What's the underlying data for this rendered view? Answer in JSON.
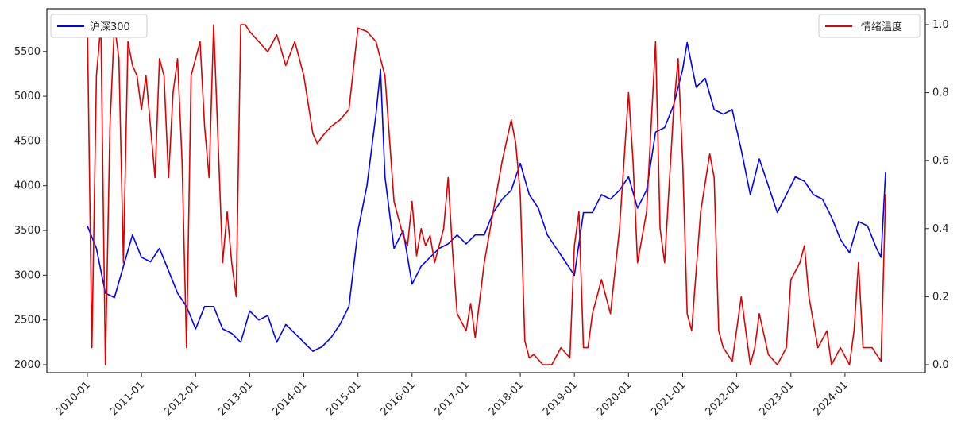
{
  "chart_data": {
    "type": "line",
    "title": "",
    "xlabel": "",
    "ylabel": "",
    "ylabel_right": "",
    "x_ticks": [
      "2010-01",
      "2011-01",
      "2012-01",
      "2013-01",
      "2014-01",
      "2015-01",
      "2016-01",
      "2017-01",
      "2018-01",
      "2019-01",
      "2020-01",
      "2021-01",
      "2022-01",
      "2023-01",
      "2024-01"
    ],
    "x_range": [
      "2010-01",
      "2024-10"
    ],
    "ylim_left": [
      2000,
      5800
    ],
    "yticks_left": [
      2000,
      2500,
      3000,
      3500,
      4000,
      4500,
      5000,
      5500
    ],
    "ylim_right": [
      0.0,
      1.0
    ],
    "yticks_right": [
      0.0,
      0.2,
      0.4,
      0.6,
      0.8,
      1.0
    ],
    "yticks_right_labels": [
      "0.0",
      "0.2",
      "0.4",
      "0.6",
      "0.8",
      "1.0"
    ],
    "grid": false,
    "series": [
      {
        "name": "沪深300",
        "axis": "left",
        "color": "#0000ff",
        "legend_position": "top-left",
        "x": [
          "2010-01",
          "2010-03",
          "2010-05",
          "2010-07",
          "2010-09",
          "2010-11",
          "2011-01",
          "2011-03",
          "2011-05",
          "2011-07",
          "2011-09",
          "2011-11",
          "2012-01",
          "2012-03",
          "2012-05",
          "2012-07",
          "2012-09",
          "2012-11",
          "2013-01",
          "2013-03",
          "2013-05",
          "2013-07",
          "2013-09",
          "2013-11",
          "2014-01",
          "2014-03",
          "2014-05",
          "2014-07",
          "2014-09",
          "2014-11",
          "2015-01",
          "2015-03",
          "2015-05",
          "2015-06",
          "2015-07",
          "2015-09",
          "2015-11",
          "2016-01",
          "2016-03",
          "2016-05",
          "2016-07",
          "2016-09",
          "2016-11",
          "2017-01",
          "2017-03",
          "2017-05",
          "2017-07",
          "2017-09",
          "2017-11",
          "2018-01",
          "2018-03",
          "2018-05",
          "2018-07",
          "2018-09",
          "2018-11",
          "2019-01",
          "2019-03",
          "2019-05",
          "2019-07",
          "2019-09",
          "2019-11",
          "2020-01",
          "2020-03",
          "2020-05",
          "2020-07",
          "2020-09",
          "2020-11",
          "2021-01",
          "2021-02",
          "2021-04",
          "2021-06",
          "2021-08",
          "2021-10",
          "2021-12",
          "2022-02",
          "2022-04",
          "2022-06",
          "2022-08",
          "2022-10",
          "2022-12",
          "2023-02",
          "2023-04",
          "2023-06",
          "2023-08",
          "2023-10",
          "2023-12",
          "2024-02",
          "2024-04",
          "2024-06",
          "2024-08",
          "2024-09",
          "2024-10"
        ],
        "values": [
          3550,
          3300,
          2800,
          2750,
          3100,
          3450,
          3200,
          3150,
          3300,
          3050,
          2800,
          2650,
          2400,
          2650,
          2650,
          2400,
          2350,
          2250,
          2600,
          2500,
          2550,
          2250,
          2450,
          2350,
          2250,
          2150,
          2200,
          2300,
          2450,
          2650,
          3500,
          4000,
          4800,
          5300,
          4100,
          3300,
          3500,
          2900,
          3100,
          3200,
          3300,
          3350,
          3450,
          3350,
          3450,
          3450,
          3700,
          3850,
          3950,
          4250,
          3900,
          3750,
          3450,
          3300,
          3150,
          3000,
          3700,
          3700,
          3900,
          3850,
          3950,
          4100,
          3750,
          3950,
          4600,
          4650,
          4900,
          5300,
          5600,
          5100,
          5200,
          4850,
          4800,
          4850,
          4400,
          3900,
          4300,
          4000,
          3700,
          3900,
          4100,
          4050,
          3900,
          3850,
          3650,
          3400,
          3250,
          3600,
          3550,
          3300,
          3200,
          4150
        ]
      },
      {
        "name": "情绪温度",
        "axis": "right",
        "color": "#e00000",
        "legend_position": "top-right",
        "x": [
          "2010-01",
          "2010-02",
          "2010-03",
          "2010-04",
          "2010-05",
          "2010-06",
          "2010-07",
          "2010-08",
          "2010-09",
          "2010-10",
          "2010-11",
          "2010-12",
          "2011-01",
          "2011-02",
          "2011-03",
          "2011-04",
          "2011-05",
          "2011-06",
          "2011-07",
          "2011-08",
          "2011-09",
          "2011-10",
          "2011-11",
          "2011-12",
          "2012-01",
          "2012-02",
          "2012-03",
          "2012-04",
          "2012-05",
          "2012-06",
          "2012-07",
          "2012-08",
          "2012-09",
          "2012-10",
          "2012-11",
          "2012-12",
          "2013-01",
          "2013-03",
          "2013-05",
          "2013-07",
          "2013-09",
          "2013-11",
          "2014-01",
          "2014-03",
          "2014-04",
          "2014-05",
          "2014-07",
          "2014-09",
          "2014-11",
          "2015-01",
          "2015-03",
          "2015-05",
          "2015-07",
          "2015-09",
          "2015-11",
          "2015-12",
          "2016-01",
          "2016-02",
          "2016-03",
          "2016-04",
          "2016-05",
          "2016-06",
          "2016-07",
          "2016-08",
          "2016-09",
          "2016-10",
          "2016-11",
          "2017-01",
          "2017-02",
          "2017-03",
          "2017-05",
          "2017-07",
          "2017-09",
          "2017-11",
          "2017-12",
          "2018-01",
          "2018-02",
          "2018-03",
          "2018-04",
          "2018-06",
          "2018-08",
          "2018-10",
          "2018-12",
          "2019-01",
          "2019-02",
          "2019-03",
          "2019-04",
          "2019-05",
          "2019-07",
          "2019-09",
          "2019-11",
          "2020-01",
          "2020-02",
          "2020-03",
          "2020-05",
          "2020-07",
          "2020-08",
          "2020-09",
          "2020-11",
          "2020-12",
          "2021-01",
          "2021-02",
          "2021-03",
          "2021-05",
          "2021-07",
          "2021-08",
          "2021-09",
          "2021-10",
          "2021-12",
          "2022-02",
          "2022-04",
          "2022-05",
          "2022-06",
          "2022-08",
          "2022-10",
          "2022-12",
          "2023-01",
          "2023-03",
          "2023-04",
          "2023-05",
          "2023-07",
          "2023-09",
          "2023-10",
          "2023-12",
          "2024-02",
          "2024-03",
          "2024-04",
          "2024-05",
          "2024-07",
          "2024-09",
          "2024-10"
        ],
        "values": [
          1.0,
          0.05,
          0.85,
          1.0,
          0.0,
          0.7,
          1.0,
          0.9,
          0.3,
          0.95,
          0.88,
          0.85,
          0.75,
          0.85,
          0.7,
          0.55,
          0.9,
          0.85,
          0.55,
          0.8,
          0.9,
          0.6,
          0.05,
          0.85,
          0.9,
          0.95,
          0.7,
          0.55,
          1.0,
          0.65,
          0.3,
          0.45,
          0.3,
          0.2,
          1.0,
          1.0,
          0.98,
          0.95,
          0.92,
          0.97,
          0.88,
          0.95,
          0.85,
          0.68,
          0.65,
          0.67,
          0.7,
          0.72,
          0.75,
          0.99,
          0.98,
          0.95,
          0.85,
          0.48,
          0.38,
          0.35,
          0.48,
          0.32,
          0.4,
          0.35,
          0.38,
          0.3,
          0.35,
          0.4,
          0.55,
          0.33,
          0.15,
          0.1,
          0.18,
          0.08,
          0.3,
          0.45,
          0.6,
          0.72,
          0.65,
          0.5,
          0.07,
          0.02,
          0.03,
          0.0,
          0.0,
          0.05,
          0.02,
          0.35,
          0.45,
          0.05,
          0.05,
          0.15,
          0.25,
          0.15,
          0.4,
          0.8,
          0.6,
          0.3,
          0.45,
          0.95,
          0.4,
          0.3,
          0.75,
          0.9,
          0.6,
          0.15,
          0.1,
          0.45,
          0.62,
          0.55,
          0.1,
          0.05,
          0.01,
          0.2,
          0.0,
          0.05,
          0.15,
          0.03,
          0.0,
          0.05,
          0.25,
          0.3,
          0.35,
          0.2,
          0.05,
          0.1,
          0.0,
          0.05,
          0.0,
          0.1,
          0.3,
          0.05,
          0.05,
          0.01,
          0.5
        ]
      }
    ]
  }
}
